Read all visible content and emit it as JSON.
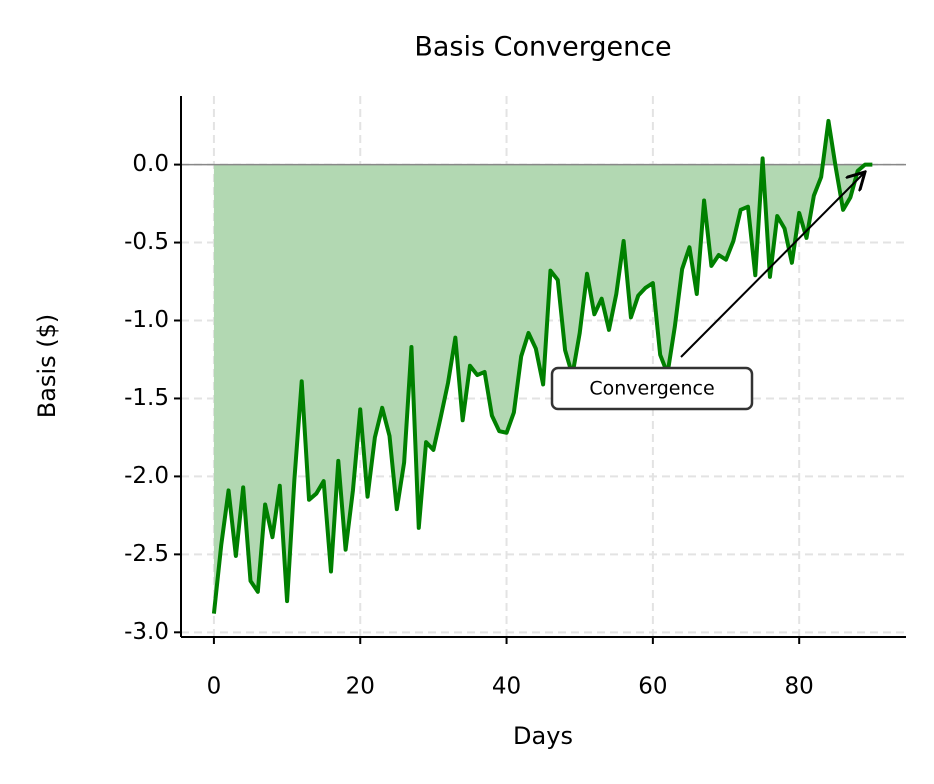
{
  "chart_data": {
    "type": "line",
    "title": "Basis Convergence",
    "xlabel": "Days",
    "ylabel": "Basis ($)",
    "x": [
      0,
      1,
      2,
      3,
      4,
      5,
      6,
      7,
      8,
      9,
      10,
      11,
      12,
      13,
      14,
      15,
      16,
      17,
      18,
      19,
      20,
      21,
      22,
      23,
      24,
      25,
      26,
      27,
      28,
      29,
      30,
      31,
      32,
      33,
      34,
      35,
      36,
      37,
      38,
      39,
      40,
      41,
      42,
      43,
      44,
      45,
      46,
      47,
      48,
      49,
      50,
      51,
      52,
      53,
      54,
      55,
      56,
      57,
      58,
      59,
      60,
      61,
      62,
      63,
      64,
      65,
      66,
      67,
      68,
      69,
      70,
      71,
      72,
      73,
      74,
      75,
      76,
      77,
      78,
      79,
      80,
      81,
      82,
      83,
      84,
      85,
      86,
      87,
      88,
      89,
      90
    ],
    "series": [
      {
        "name": "Basis",
        "color": "#008000",
        "fill_color": "#b2d8b2",
        "values": [
          -2.88,
          -2.44,
          -2.09,
          -2.51,
          -2.07,
          -2.67,
          -2.74,
          -2.18,
          -2.39,
          -2.06,
          -2.8,
          -2.02,
          -1.39,
          -2.15,
          -2.11,
          -2.03,
          -2.61,
          -1.9,
          -2.47,
          -2.09,
          -1.57,
          -2.13,
          -1.75,
          -1.56,
          -1.74,
          -2.21,
          -1.91,
          -1.17,
          -2.33,
          -1.78,
          -1.83,
          -1.62,
          -1.4,
          -1.11,
          -1.64,
          -1.29,
          -1.35,
          -1.33,
          -1.61,
          -1.71,
          -1.72,
          -1.59,
          -1.23,
          -1.08,
          -1.18,
          -1.41,
          -0.68,
          -0.74,
          -1.19,
          -1.35,
          -1.08,
          -0.7,
          -0.96,
          -0.86,
          -1.06,
          -0.83,
          -0.49,
          -0.98,
          -0.84,
          -0.79,
          -0.76,
          -1.22,
          -1.34,
          -1.04,
          -0.67,
          -0.53,
          -0.83,
          -0.23,
          -0.65,
          -0.58,
          -0.61,
          -0.49,
          -0.29,
          -0.27,
          -0.71,
          0.04,
          -0.72,
          -0.33,
          -0.41,
          -0.63,
          -0.31,
          -0.47,
          -0.2,
          -0.08,
          0.28,
          -0.02,
          -0.29,
          -0.21,
          -0.04,
          0.0,
          0.0
        ]
      }
    ],
    "annotation": "Convergence",
    "xlim": [
      -4.5,
      94.6
    ],
    "ylim": [
      -3.03,
      0.44
    ],
    "xticks": [
      0,
      20,
      40,
      60,
      80
    ],
    "yticks": [
      {
        "value": -3.0,
        "label": "-3.0"
      },
      -2.5,
      {
        "value": -2.0,
        "label": "-2.0"
      },
      -1.5,
      {
        "value": -1.0,
        "label": "-1.0"
      },
      -0.5,
      {
        "value": 0.0,
        "label": "0.0"
      }
    ],
    "grid": true
  }
}
